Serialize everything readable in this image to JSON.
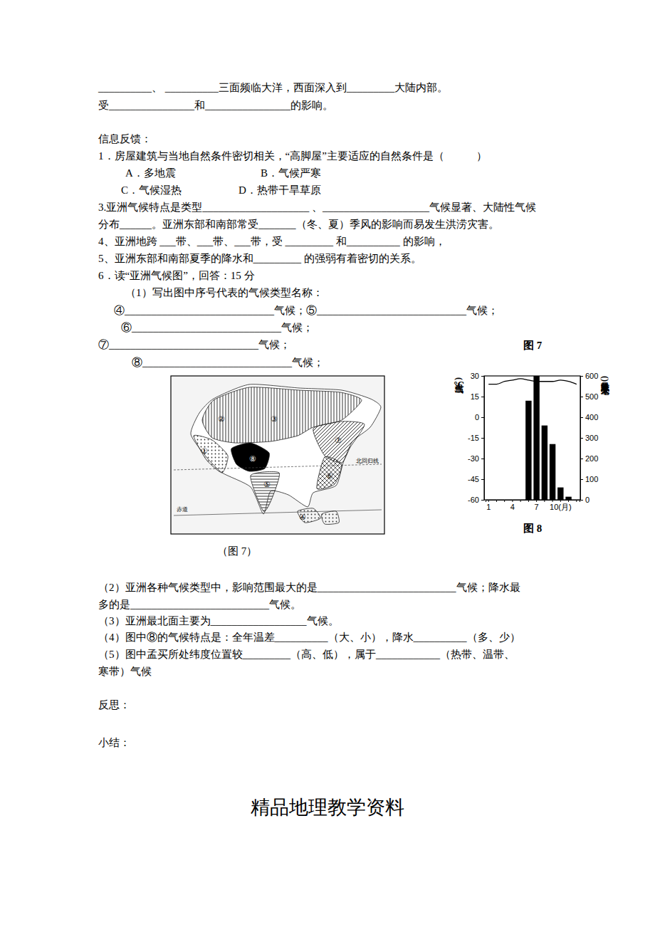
{
  "lines": [
    "__________、 __________三面频临大洋，西面深入到_________大陆内部。",
    "受________________和________________的影响。",
    "信息反馈：",
    "1．房屋建筑与当地自然条件密切相关，“高脚屋”主要适应的自然条件是（　　　）",
    "A．多地震",
    "B．气候严寒",
    "C．气候湿热",
    "D．热带干旱草原",
    "3.亚洲气候特点是类型____________________ 、____________________气候显著、大陆性气候",
    "分布______。亚洲东部和南部常受_______（冬、夏）季风的影响而易发生洪涝灾害。",
    "4、亚洲地跨 ___带、___带、___带，受 _________ 和__________ 的影响，",
    "5、亚洲东部和南部夏季的降水和_________ 的强弱有着密切的关系。",
    "6．读“亚洲气候图”，回答：15 分",
    "（1）写出图中序号代表的气候类型名称：",
    "④____________________________气候；⑤____________________________气候；",
    "⑥____________________________气候；",
    "⑦____________________________气候；",
    "⑧____________________________气候；",
    "（2）亚洲各种气候类型中，影响范围最大的是__________________________气候；降水最",
    "多的是__________________________气候。",
    "（3）亚洲最北面主要为__________________气候。",
    "（4）图中⑧的气候特点是：全年温差__________（大、小），降水__________（多、少）",
    "（5）图中孟买所处纬度位置较_________（高、低），属于____________（热带、温带、",
    "寒带）气候",
    "反思：",
    "小结："
  ],
  "figure_labels": {
    "fig7_side": "图 7",
    "fig8": "图 8",
    "fig7_caption": "（图 7）"
  },
  "map": {
    "labels": [
      {
        "text": "①"
      },
      {
        "text": "②"
      },
      {
        "text": "③"
      },
      {
        "text": "④"
      },
      {
        "text": "⑤"
      },
      {
        "text": "⑥"
      },
      {
        "text": "⑦"
      },
      {
        "text": "⑧"
      },
      {
        "text": "赤道"
      },
      {
        "text": "北回归线"
      }
    ]
  },
  "footer": "精品地理教学资料",
  "chart_data": {
    "type": "bar",
    "categories": [
      "1",
      null,
      null,
      "4",
      null,
      null,
      "7",
      null,
      null,
      "10(月)",
      null,
      null
    ],
    "series": [
      {
        "type": "line",
        "color": "#000000",
        "values": [
          24,
          24,
          26,
          27,
          28,
          27,
          26,
          26,
          26,
          27,
          26,
          24
        ]
      },
      {
        "type": "bar",
        "axis": "y2",
        "color": "#000000",
        "values": [
          0,
          0,
          0,
          0,
          0,
          480,
          600,
          360,
          270,
          60,
          15,
          0
        ]
      }
    ],
    "y_label": "气温(℃)",
    "y2_label": "降水量(毫米)",
    "ylim": [
      -60,
      30
    ],
    "yticks": [
      -60,
      -45,
      -30,
      -15,
      0,
      15,
      30
    ],
    "y2lim": [
      0,
      600
    ],
    "y2ticks": [
      0,
      100,
      200,
      300,
      400,
      500,
      600
    ],
    "grid": false
  }
}
